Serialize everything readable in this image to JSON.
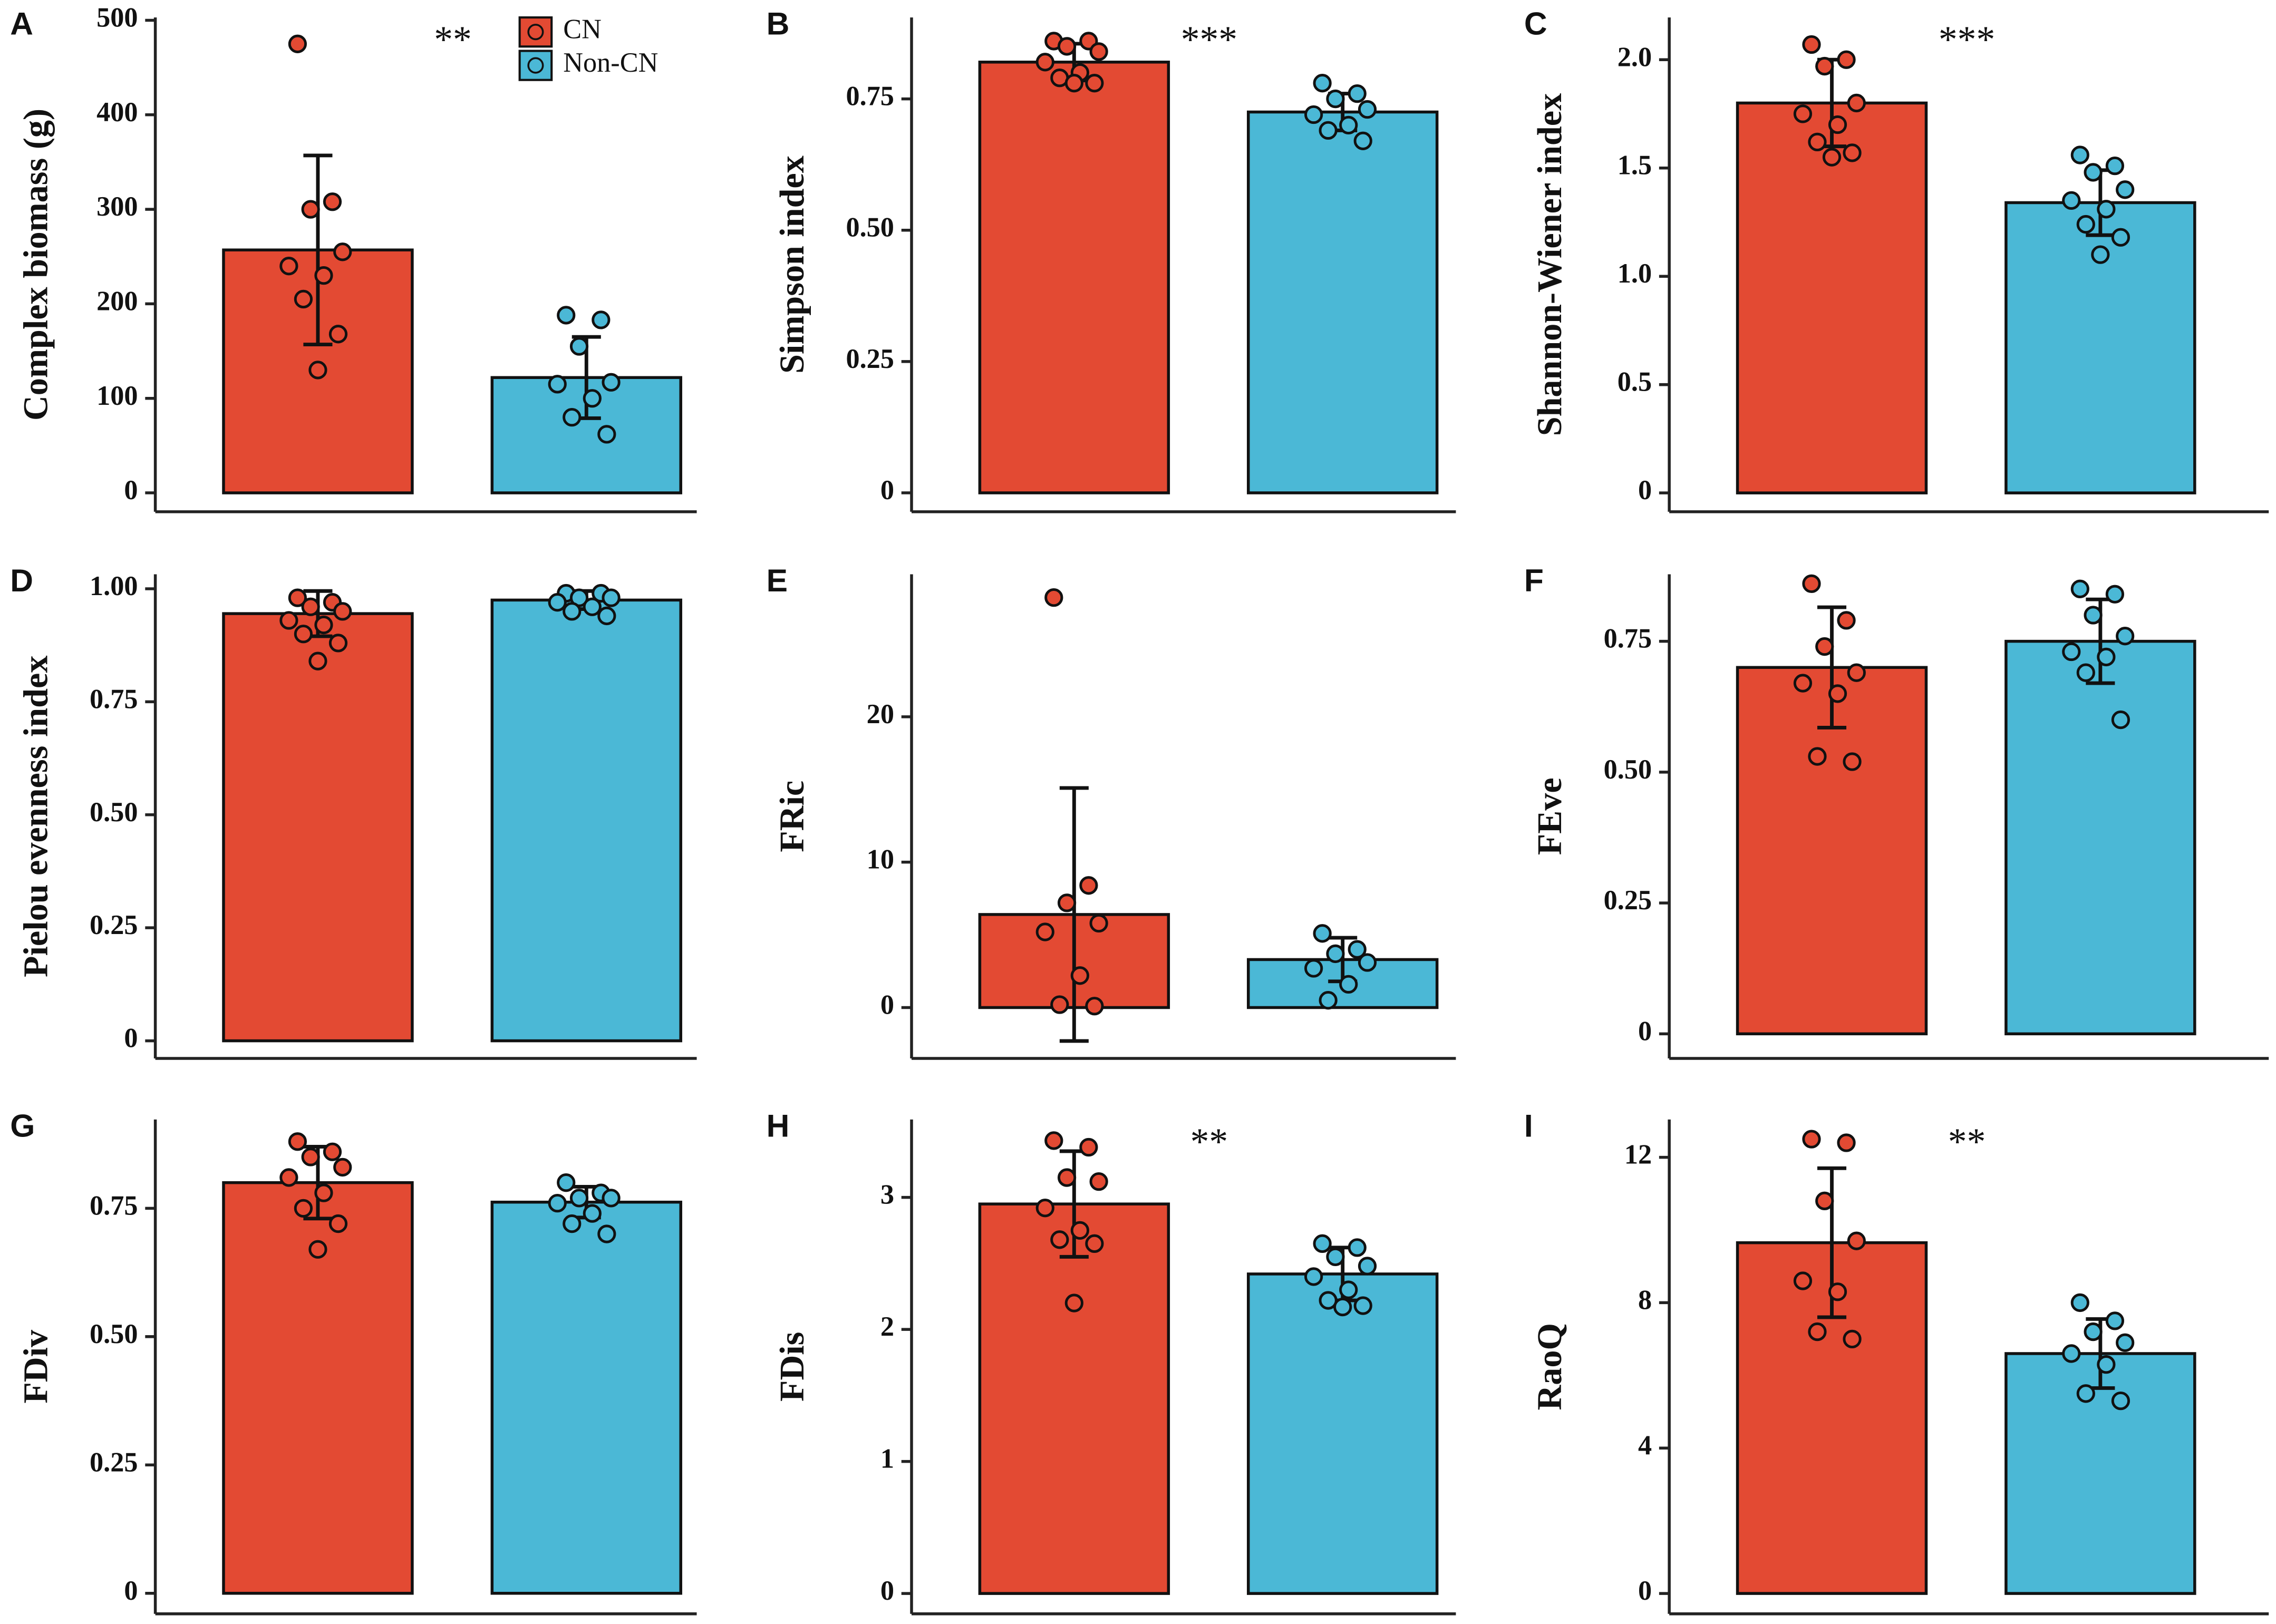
{
  "legend": [
    {
      "name": "CN",
      "color": "#e34a33"
    },
    {
      "name": "Non-CN",
      "color": "#4bb8d6"
    }
  ],
  "chart_data": [
    {
      "type": "bar",
      "label": "A",
      "ylabel": "Complex biomass (g)",
      "annotation": "**",
      "ylim": [
        -20,
        503
      ],
      "yticks": [
        0,
        100,
        200,
        300,
        400,
        500
      ],
      "values": [
        257,
        122
      ],
      "errors": [
        100,
        43
      ],
      "points": [
        [
          475,
          308,
          300,
          255,
          240,
          230,
          205,
          168,
          130
        ],
        [
          188,
          183,
          155,
          117,
          115,
          100,
          80,
          62
        ]
      ]
    },
    {
      "type": "bar",
      "label": "B",
      "ylabel": "Simpson index",
      "annotation": "***",
      "ylim": [
        -0.036,
        0.905
      ],
      "yticks": [
        0,
        0.25,
        {
          "value": 0.5,
          "label": "0.50"
        },
        0.75
      ],
      "values": [
        0.82,
        0.725
      ],
      "errors": [
        0.035,
        0.035
      ],
      "points": [
        [
          0.86,
          0.86,
          0.85,
          0.84,
          0.82,
          0.8,
          0.79,
          0.78,
          0.78
        ],
        [
          0.78,
          0.76,
          0.75,
          0.73,
          0.72,
          0.7,
          0.69,
          0.67
        ]
      ]
    },
    {
      "type": "bar",
      "label": "C",
      "ylabel": "Shannon-Wiener index",
      "annotation": "***",
      "ylim": [
        -0.087,
        2.195
      ],
      "yticks": [
        0,
        0.5,
        {
          "value": 1,
          "label": "1.0"
        },
        1.5,
        {
          "value": 2,
          "label": "2.0"
        }
      ],
      "values": [
        1.8,
        1.34
      ],
      "errors": [
        0.2,
        0.15
      ],
      "points": [
        [
          2.07,
          2.0,
          1.97,
          1.8,
          1.75,
          1.7,
          1.62,
          1.57,
          1.55
        ],
        [
          1.56,
          1.51,
          1.48,
          1.4,
          1.35,
          1.31,
          1.24,
          1.18,
          1.1
        ]
      ]
    },
    {
      "type": "bar",
      "label": "D",
      "ylabel": "Pielou evenness index",
      "ylim": [
        -0.039,
        1.032
      ],
      "yticks": [
        0,
        0.25,
        {
          "value": 0.5,
          "label": "0.50"
        },
        0.75,
        {
          "value": 1,
          "label": "1.00"
        }
      ],
      "values": [
        0.945,
        0.975
      ],
      "errors": [
        0.05,
        0.02
      ],
      "points": [
        [
          0.98,
          0.97,
          0.96,
          0.95,
          0.93,
          0.92,
          0.9,
          0.88,
          0.84
        ],
        [
          0.99,
          0.99,
          0.98,
          0.98,
          0.97,
          0.96,
          0.95,
          0.94
        ]
      ]
    },
    {
      "type": "bar",
      "label": "E",
      "ylabel": "FRic",
      "ylim": [
        -3.5,
        29.8
      ],
      "yticks": [
        0,
        10,
        20
      ],
      "values": [
        6.4,
        3.3
      ],
      "errors": [
        8.7,
        1.5
      ],
      "points": [
        [
          28.2,
          8.4,
          7.2,
          5.8,
          5.2,
          2.2,
          0.2,
          0.1
        ],
        [
          5.1,
          4.0,
          3.7,
          3.1,
          2.7,
          1.6,
          0.5
        ]
      ]
    },
    {
      "type": "bar",
      "label": "F",
      "ylabel": "FEve",
      "ylim": [
        -0.047,
        0.878
      ],
      "yticks": [
        0,
        0.25,
        {
          "value": 0.5,
          "label": "0.50"
        },
        0.75
      ],
      "values": [
        0.7,
        0.75
      ],
      "errors": [
        0.115,
        0.08
      ],
      "points": [
        [
          0.86,
          0.79,
          0.74,
          0.69,
          0.67,
          0.65,
          0.53,
          0.52
        ],
        [
          0.85,
          0.84,
          0.8,
          0.76,
          0.73,
          0.72,
          0.69,
          0.6
        ]
      ]
    },
    {
      "type": "bar",
      "label": "G",
      "ylabel": "FDiv",
      "ylim": [
        -0.04,
        0.923
      ],
      "yticks": [
        0,
        0.25,
        {
          "value": 0.5,
          "label": "0.50"
        },
        0.75
      ],
      "values": [
        0.8,
        0.762
      ],
      "errors": [
        0.07,
        0.03
      ],
      "points": [
        [
          0.88,
          0.86,
          0.85,
          0.83,
          0.81,
          0.78,
          0.75,
          0.72,
          0.67
        ],
        [
          0.8,
          0.78,
          0.77,
          0.77,
          0.76,
          0.74,
          0.72,
          0.7
        ]
      ]
    },
    {
      "type": "bar",
      "label": "H",
      "ylabel": "FDis",
      "annotation": "**",
      "ylim": [
        -0.154,
        3.59
      ],
      "yticks": [
        0,
        1,
        2,
        3
      ],
      "values": [
        2.95,
        2.42
      ],
      "errors": [
        0.4,
        0.2
      ],
      "points": [
        [
          3.43,
          3.38,
          3.15,
          3.12,
          2.92,
          2.75,
          2.68,
          2.65,
          2.2
        ],
        [
          2.65,
          2.62,
          2.55,
          2.48,
          2.4,
          2.3,
          2.22,
          2.18,
          2.17
        ]
      ]
    },
    {
      "type": "bar",
      "label": "I",
      "ylabel": "RaoQ",
      "annotation": "**",
      "ylim": [
        -0.56,
        13.04
      ],
      "yticks": [
        0,
        4,
        8,
        12
      ],
      "values": [
        9.65,
        6.6
      ],
      "errors": [
        2.05,
        0.95
      ],
      "points": [
        [
          12.5,
          12.4,
          10.8,
          9.7,
          8.6,
          8.3,
          7.2,
          7.0
        ],
        [
          8.0,
          7.5,
          7.2,
          6.9,
          6.6,
          6.3,
          5.5,
          5.3
        ]
      ]
    }
  ]
}
